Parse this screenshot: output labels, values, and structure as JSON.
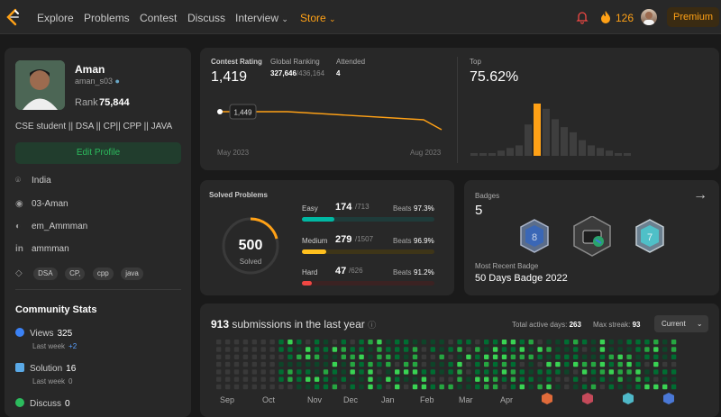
{
  "nav": {
    "items": [
      "Explore",
      "Problems",
      "Contest",
      "Discuss",
      "Interview",
      "Store"
    ],
    "streak": "126",
    "premium": "Premium",
    "accent": "#ffa116"
  },
  "profile": {
    "name": "Aman",
    "handle": "aman_s03",
    "rank_label": "Rank",
    "rank_value": "75,844",
    "bio": "CSE student || DSA || CP|| CPP || JAVA",
    "edit_label": "Edit Profile",
    "info": [
      {
        "icon": "location-icon",
        "text": "India"
      },
      {
        "icon": "github-icon",
        "text": "03-Aman"
      },
      {
        "icon": "twitter-icon",
        "text": "em_Ammman"
      },
      {
        "icon": "linkedin-icon",
        "text": "ammman"
      }
    ],
    "tags": [
      "DSA",
      "CP,",
      "cpp",
      "java"
    ]
  },
  "community": {
    "title": "Community Stats",
    "stats": [
      {
        "label": "Views",
        "value": "325",
        "sub": "Last week",
        "delta": "+2",
        "color": "#3b82f6",
        "icon": "eye-icon"
      },
      {
        "label": "Solution",
        "value": "16",
        "sub": "Last week",
        "delta": "0",
        "color": "#5aa9e6",
        "icon": "solution-icon"
      },
      {
        "label": "Discuss",
        "value": "0",
        "color": "#2cbb5d",
        "icon": "discuss-icon"
      }
    ]
  },
  "contest": {
    "rating_label": "Contest Rating",
    "rating": "1,419",
    "ranking_label": "Global Ranking",
    "ranking": "327,646",
    "ranking_total": "/436,164",
    "attended_label": "Attended",
    "attended": "4",
    "top_label": "Top",
    "top": "75.62%",
    "tooltip": "1,449",
    "start": "May 2023",
    "end": "Aug 2023",
    "chart_data": {
      "type": "line",
      "series": [
        {
          "values": [
            1449,
            1440,
            1432,
            1419
          ]
        }
      ]
    },
    "histogram": {
      "type": "bar",
      "values": [
        1,
        1,
        1,
        2,
        3,
        4,
        12,
        20,
        18,
        14,
        11,
        9,
        6,
        4,
        3,
        2,
        1,
        1
      ],
      "highlight_index": 7
    }
  },
  "solved": {
    "title": "Solved Problems",
    "total": "500",
    "total_label": "Solved",
    "beats_label": "Beats",
    "rows": [
      {
        "label": "Easy",
        "count": "174",
        "total": "/713",
        "beats": "97.3%",
        "color": "#00b8a3",
        "frac": 0.244
      },
      {
        "label": "Medium",
        "count": "279",
        "total": "/1507",
        "beats": "96.9%",
        "color": "#ffc01e",
        "frac": 0.185
      },
      {
        "label": "Hard",
        "count": "47",
        "total": "/626",
        "beats": "91.2%",
        "color": "#ef4743",
        "frac": 0.075
      }
    ]
  },
  "badges": {
    "title": "Badges",
    "count": "5",
    "recent_label": "Most Recent Badge",
    "recent": "50 Days Badge 2022"
  },
  "submissions": {
    "count": "913",
    "label": "submissions in the last year",
    "active_label": "Total active days:",
    "active": "263",
    "streak_label": "Max streak:",
    "streak": "93",
    "dropdown": "Current",
    "months": [
      "Sep",
      "Oct",
      "Nov",
      "Dec",
      "Jan",
      "Feb",
      "Mar",
      "Apr"
    ]
  }
}
